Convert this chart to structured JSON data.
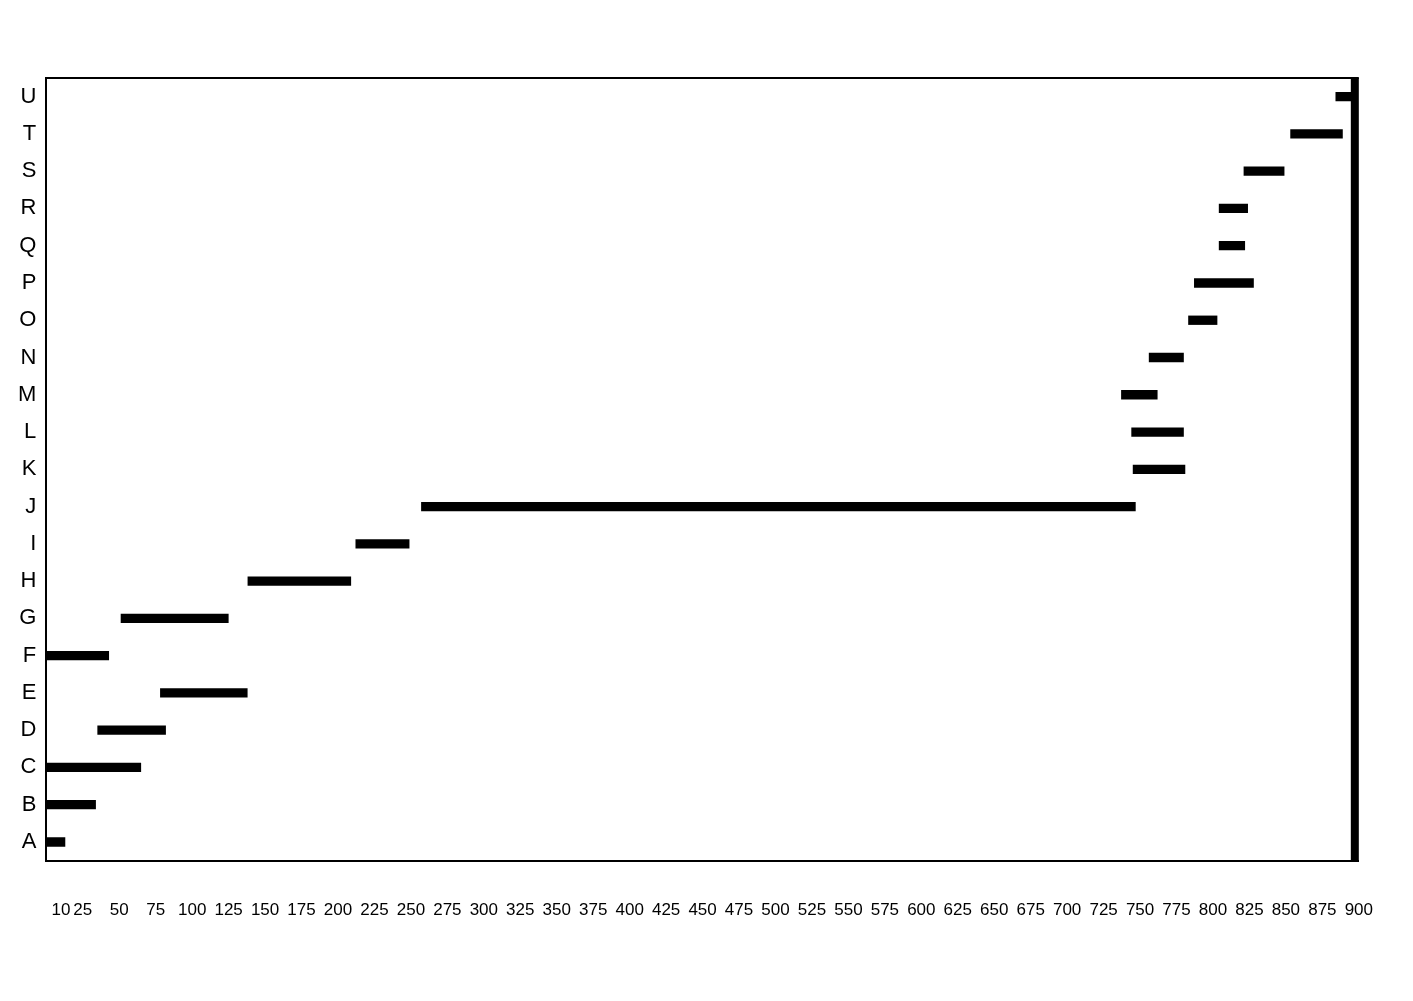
{
  "chart_data": {
    "type": "bar",
    "orientation": "horizontal",
    "categories": [
      "U",
      "T",
      "S",
      "R",
      "Q",
      "P",
      "O",
      "N",
      "M",
      "L",
      "K",
      "J",
      "I",
      "H",
      "G",
      "F",
      "E",
      "D",
      "C",
      "B",
      "A"
    ],
    "base": [
      884,
      853,
      821,
      804,
      804,
      787,
      783,
      756,
      737,
      744,
      745,
      257,
      212,
      138,
      51,
      0,
      78,
      35,
      0,
      0,
      0
    ],
    "values": [
      13,
      36,
      28,
      20,
      18,
      41,
      20,
      24,
      25,
      36,
      36,
      490,
      37,
      71,
      74,
      43,
      60,
      47,
      65,
      34,
      13
    ],
    "color": "#000000",
    "xlim": [
      0,
      900
    ],
    "xticks": [
      10,
      25,
      50,
      75,
      100,
      125,
      150,
      175,
      200,
      225,
      250,
      275,
      300,
      325,
      350,
      375,
      400,
      425,
      450,
      475,
      500,
      525,
      550,
      575,
      600,
      625,
      650,
      675,
      700,
      725,
      750,
      775,
      800,
      825,
      850,
      875,
      900
    ]
  }
}
